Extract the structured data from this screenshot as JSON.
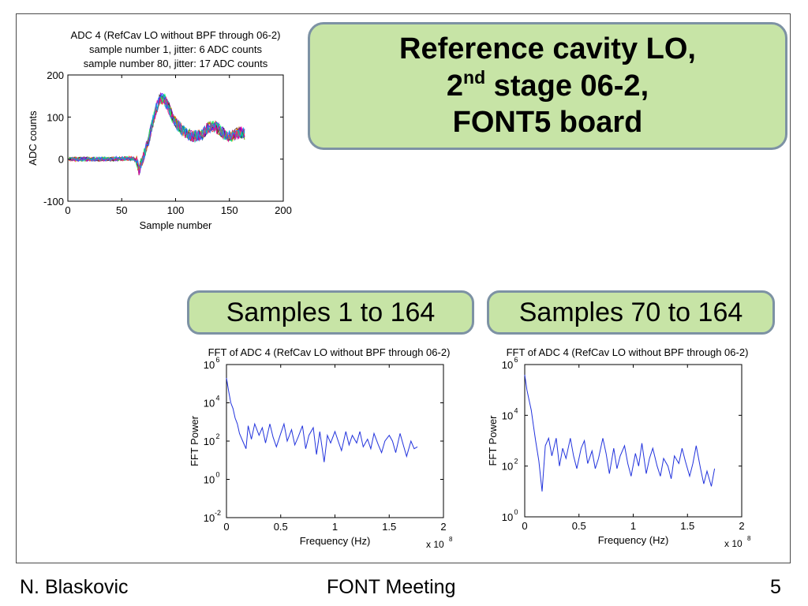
{
  "slide": {
    "title_line1": "Reference cavity LO,",
    "title_line2_pre": "2",
    "title_line2_sup": "nd",
    "title_line2_post": " stage 06-2,",
    "title_line3": "FONT5 board",
    "label_left": "Samples 1 to 164",
    "label_right": "Samples 70 to 164"
  },
  "footer": {
    "author": "N. Blaskovic",
    "meeting": "FONT Meeting",
    "page": "5"
  },
  "chart_data": [
    {
      "type": "line",
      "title": [
        "ADC 4 (RefCav LO without BPF through 06-2)",
        "sample number 1, jitter: 6 ADC counts",
        "sample number 80, jitter: 17 ADC counts"
      ],
      "xlabel": "Sample number",
      "ylabel": "ADC counts",
      "xlim": [
        0,
        200
      ],
      "ylim": [
        -100,
        200
      ],
      "xticks": [
        0,
        50,
        100,
        150,
        200
      ],
      "yticks": [
        -100,
        0,
        100,
        200
      ],
      "xtick_labels": [
        "0",
        "50",
        "100",
        "150",
        "200"
      ],
      "ytick_labels": [
        "-100",
        "0",
        "100",
        "200"
      ],
      "grid": false,
      "n_traces": 12,
      "mean_trace": {
        "x": [
          0,
          20,
          40,
          60,
          64,
          66,
          68,
          70,
          72,
          75,
          78,
          82,
          86,
          90,
          94,
          98,
          102,
          106,
          110,
          115,
          120,
          125,
          130,
          135,
          140,
          145,
          150,
          155,
          160,
          164
        ],
        "y": [
          0,
          0,
          0,
          2,
          -5,
          -25,
          -10,
          5,
          22,
          45,
          80,
          120,
          145,
          140,
          120,
          95,
          80,
          70,
          62,
          55,
          55,
          60,
          75,
          80,
          72,
          60,
          55,
          58,
          65,
          60
        ]
      },
      "trace_colors": [
        "#1f3fd0",
        "#00a000",
        "#e02020",
        "#00c0c0",
        "#c000c0",
        "#c0a000",
        "#202020",
        "#ff6a00",
        "#6a00ff",
        "#00ff60",
        "#ff0090",
        "#0090ff"
      ]
    },
    {
      "type": "line",
      "title": "FFT of ADC 4 (RefCav LO without BPF through 06-2)",
      "xlabel": "Frequency (Hz)",
      "ylabel": "FFT Power",
      "x_multiplier": "x 10",
      "x_multiplier_exp": "8",
      "xlim": [
        0,
        2
      ],
      "ylim_log10": [
        -2,
        6
      ],
      "yscale": "log",
      "xticks": [
        0,
        0.5,
        1,
        1.5,
        2
      ],
      "xtick_labels": [
        "0",
        "0.5",
        "1",
        "1.5",
        "2"
      ],
      "ytick_exps": [
        -2,
        0,
        2,
        4,
        6
      ],
      "ytick_base": "10",
      "grid": false,
      "color": "#2233dd",
      "x": [
        0,
        0.02,
        0.04,
        0.06,
        0.08,
        0.1,
        0.12,
        0.15,
        0.18,
        0.2,
        0.23,
        0.26,
        0.3,
        0.33,
        0.36,
        0.4,
        0.43,
        0.46,
        0.5,
        0.53,
        0.56,
        0.6,
        0.63,
        0.66,
        0.7,
        0.73,
        0.76,
        0.8,
        0.83,
        0.86,
        0.9,
        0.93,
        0.96,
        1.0,
        1.03,
        1.06,
        1.1,
        1.13,
        1.16,
        1.2,
        1.23,
        1.26,
        1.3,
        1.33,
        1.36,
        1.4,
        1.43,
        1.46,
        1.5,
        1.53,
        1.56,
        1.6,
        1.63,
        1.66,
        1.7,
        1.73,
        1.76
      ],
      "y_log10": [
        5.3,
        4.6,
        4.0,
        3.7,
        3.2,
        2.9,
        2.4,
        2.0,
        1.6,
        2.8,
        2.1,
        2.9,
        2.3,
        2.7,
        1.9,
        2.9,
        2.2,
        1.7,
        2.4,
        2.9,
        2.0,
        2.6,
        1.8,
        2.2,
        2.8,
        1.6,
        2.3,
        2.7,
        1.3,
        2.5,
        0.9,
        2.3,
        1.9,
        2.5,
        2.0,
        1.5,
        2.5,
        1.8,
        2.3,
        1.9,
        2.5,
        1.7,
        2.1,
        1.6,
        2.4,
        1.8,
        1.4,
        2.0,
        2.3,
        2.0,
        1.4,
        2.4,
        1.8,
        1.2,
        2.0,
        1.6,
        1.7
      ]
    },
    {
      "type": "line",
      "title": "FFT of ADC 4 (RefCav LO without BPF through 06-2)",
      "xlabel": "Frequency (Hz)",
      "ylabel": "FFT Power",
      "x_multiplier": "x 10",
      "x_multiplier_exp": "8",
      "xlim": [
        0,
        2
      ],
      "ylim_log10": [
        0,
        6
      ],
      "yscale": "log",
      "xticks": [
        0,
        0.5,
        1,
        1.5,
        2
      ],
      "xtick_labels": [
        "0",
        "0.5",
        "1",
        "1.5",
        "2"
      ],
      "ytick_exps": [
        0,
        2,
        4,
        6
      ],
      "ytick_base": "10",
      "grid": false,
      "color": "#2233dd",
      "x": [
        0,
        0.02,
        0.04,
        0.06,
        0.08,
        0.1,
        0.13,
        0.16,
        0.19,
        0.22,
        0.25,
        0.29,
        0.32,
        0.35,
        0.38,
        0.42,
        0.45,
        0.48,
        0.52,
        0.55,
        0.58,
        0.62,
        0.65,
        0.68,
        0.72,
        0.75,
        0.78,
        0.82,
        0.85,
        0.88,
        0.92,
        0.95,
        0.98,
        1.02,
        1.05,
        1.08,
        1.12,
        1.15,
        1.18,
        1.22,
        1.25,
        1.28,
        1.32,
        1.35,
        1.38,
        1.42,
        1.45,
        1.48,
        1.52,
        1.55,
        1.58,
        1.62,
        1.65,
        1.68,
        1.72,
        1.75
      ],
      "y_log10": [
        5.6,
        5.0,
        4.6,
        4.2,
        3.6,
        3.0,
        2.2,
        1.0,
        2.8,
        3.1,
        2.4,
        3.1,
        2.0,
        2.7,
        2.3,
        3.1,
        2.4,
        1.9,
        2.7,
        3.0,
        2.1,
        2.6,
        1.9,
        2.3,
        3.1,
        2.5,
        1.7,
        2.7,
        1.9,
        2.4,
        2.8,
        2.1,
        1.6,
        2.5,
        2.0,
        2.9,
        1.7,
        2.3,
        2.7,
        2.0,
        1.6,
        2.3,
        2.0,
        1.5,
        2.4,
        2.1,
        2.7,
        2.2,
        1.6,
        2.1,
        2.8,
        1.9,
        1.3,
        1.8,
        1.2,
        1.9
      ]
    }
  ]
}
